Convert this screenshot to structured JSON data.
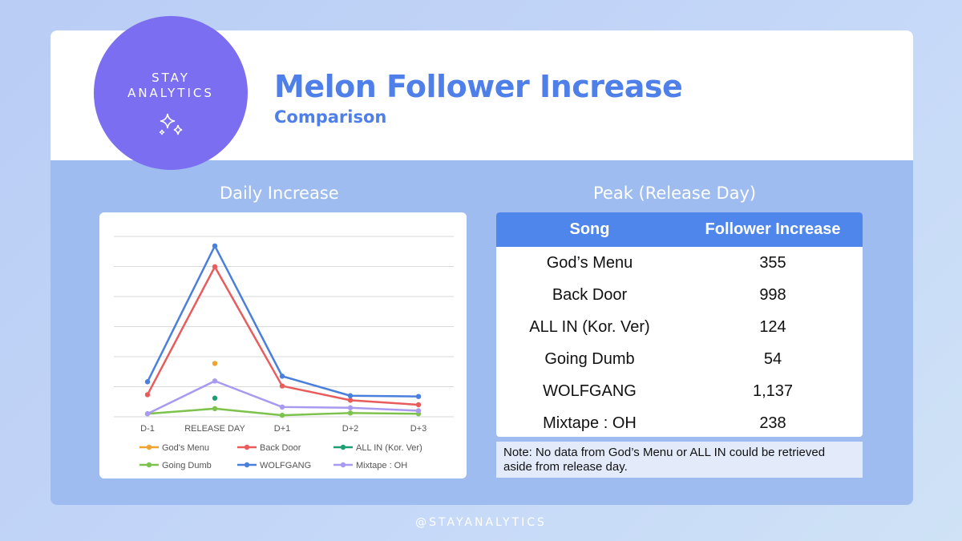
{
  "header": {
    "logo_line1": "STAY",
    "logo_line2": "ANALYTICS",
    "title": "Melon Follower Increase",
    "subtitle": "Comparison"
  },
  "chart_section_title": "Daily Increase",
  "table_section_title": "Peak (Release Day)",
  "chart_data": {
    "type": "line",
    "title": "Daily Increase",
    "categories": [
      "D-1",
      "RELEASE DAY",
      "D+1",
      "D+2",
      "D+3"
    ],
    "ylim": [
      0,
      1200
    ],
    "grid": true,
    "legend_position": "bottom",
    "series": [
      {
        "name": "God's Menu",
        "color": "#f0a330",
        "values": [
          null,
          355,
          null,
          null,
          null
        ]
      },
      {
        "name": "Back Door",
        "color": "#e85c5c",
        "values": [
          147,
          998,
          205,
          110,
          80
        ]
      },
      {
        "name": "ALL IN (Kor. Ver)",
        "color": "#1e9e73",
        "values": [
          null,
          124,
          null,
          null,
          null
        ]
      },
      {
        "name": "Going Dumb",
        "color": "#7cc24c",
        "values": [
          20,
          54,
          10,
          25,
          20
        ]
      },
      {
        "name": "WOLFGANG",
        "color": "#4a7fdc",
        "values": [
          233,
          1137,
          270,
          140,
          135
        ]
      },
      {
        "name": "Mixtape : OH",
        "color": "#a89af0",
        "values": [
          20,
          238,
          65,
          60,
          40
        ]
      }
    ]
  },
  "table": {
    "headers": [
      "Song",
      "Follower Increase"
    ],
    "rows": [
      {
        "song": "God’s Menu",
        "value": "355"
      },
      {
        "song": "Back Door",
        "value": "998"
      },
      {
        "song": "ALL IN (Kor. Ver)",
        "value": "124"
      },
      {
        "song": "Going Dumb",
        "value": "54"
      },
      {
        "song": "WOLFGANG",
        "value": "1,137"
      },
      {
        "song": "Mixtape : OH",
        "value": "238"
      }
    ]
  },
  "note": "Note: No data from God’s Menu or ALL IN could be retrieved aside from release day.",
  "footer": "@STAYANALYTICS",
  "colors": {
    "brand_purple": "#7b6ef0",
    "title_blue": "#4f7fe8",
    "table_header_blue": "#4f86ec",
    "panel_blue": "#9fbcf0"
  }
}
